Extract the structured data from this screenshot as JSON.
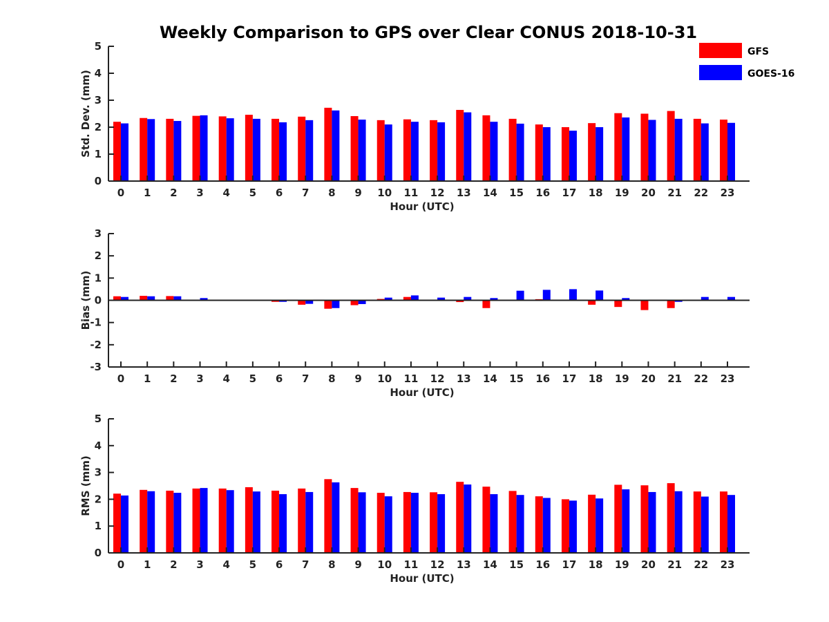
{
  "title": "Weekly Comparison to GPS over Clear CONUS 2018-10-31",
  "colors": {
    "GFS": "#ff0000",
    "GOES-16": "#0000ff"
  },
  "legend": {
    "position": "top-right",
    "entries": [
      "GFS",
      "GOES-16"
    ]
  },
  "chart_data": [
    {
      "type": "bar",
      "xlabel": "Hour (UTC)",
      "ylabel": "Std. Dev. (mm)",
      "ylim": [
        0,
        5
      ],
      "yticks": [
        0,
        1,
        2,
        3,
        4,
        5
      ],
      "categories": [
        "0",
        "1",
        "2",
        "3",
        "4",
        "5",
        "6",
        "7",
        "8",
        "9",
        "10",
        "11",
        "12",
        "13",
        "14",
        "15",
        "16",
        "17",
        "18",
        "19",
        "20",
        "21",
        "22",
        "23"
      ],
      "series": [
        {
          "name": "GFS",
          "values": [
            2.2,
            2.34,
            2.31,
            2.42,
            2.4,
            2.46,
            2.31,
            2.39,
            2.72,
            2.41,
            2.26,
            2.29,
            2.26,
            2.64,
            2.44,
            2.31,
            2.1,
            2.0,
            2.15,
            2.52,
            2.5,
            2.6,
            2.31,
            2.28
          ]
        },
        {
          "name": "GOES-16",
          "values": [
            2.14,
            2.3,
            2.23,
            2.44,
            2.33,
            2.31,
            2.18,
            2.26,
            2.62,
            2.28,
            2.1,
            2.2,
            2.18,
            2.55,
            2.2,
            2.13,
            2.0,
            1.87,
            2.0,
            2.36,
            2.27,
            2.31,
            2.14,
            2.16
          ]
        }
      ]
    },
    {
      "type": "bar",
      "xlabel": "Hour (UTC)",
      "ylabel": "Bias (mm)",
      "ylim": [
        -3,
        3
      ],
      "yticks": [
        -3,
        -2,
        -1,
        0,
        1,
        2,
        3
      ],
      "categories": [
        "0",
        "1",
        "2",
        "3",
        "4",
        "5",
        "6",
        "7",
        "8",
        "9",
        "10",
        "11",
        "12",
        "13",
        "14",
        "15",
        "16",
        "17",
        "18",
        "19",
        "20",
        "21",
        "22",
        "23"
      ],
      "series": [
        {
          "name": "GFS",
          "values": [
            0.18,
            0.2,
            0.19,
            0.01,
            0.01,
            0.02,
            -0.07,
            -0.2,
            -0.38,
            -0.22,
            0.06,
            0.15,
            0.01,
            -0.08,
            -0.35,
            0.0,
            0.05,
            0.0,
            -0.2,
            -0.3,
            -0.44,
            -0.35,
            0.03,
            0.02
          ]
        },
        {
          "name": "GOES-16",
          "values": [
            0.15,
            0.18,
            0.18,
            0.1,
            0.03,
            0.02,
            -0.07,
            -0.16,
            -0.35,
            -0.17,
            0.12,
            0.22,
            0.12,
            0.15,
            0.1,
            0.43,
            0.47,
            0.5,
            0.44,
            0.1,
            -0.02,
            -0.07,
            0.15,
            0.15
          ]
        }
      ]
    },
    {
      "type": "bar",
      "xlabel": "Hour (UTC)",
      "ylabel": "RMS (mm)",
      "ylim": [
        0,
        5
      ],
      "yticks": [
        0,
        1,
        2,
        3,
        4,
        5
      ],
      "categories": [
        "0",
        "1",
        "2",
        "3",
        "4",
        "5",
        "6",
        "7",
        "8",
        "9",
        "10",
        "11",
        "12",
        "13",
        "14",
        "15",
        "16",
        "17",
        "18",
        "19",
        "20",
        "21",
        "22",
        "23"
      ],
      "series": [
        {
          "name": "GFS",
          "values": [
            2.21,
            2.35,
            2.32,
            2.4,
            2.4,
            2.45,
            2.32,
            2.4,
            2.75,
            2.42,
            2.24,
            2.27,
            2.26,
            2.65,
            2.47,
            2.31,
            2.11,
            2.0,
            2.17,
            2.54,
            2.52,
            2.6,
            2.29,
            2.29
          ]
        },
        {
          "name": "GOES-16",
          "values": [
            2.14,
            2.3,
            2.24,
            2.42,
            2.34,
            2.29,
            2.19,
            2.27,
            2.63,
            2.26,
            2.11,
            2.24,
            2.19,
            2.55,
            2.19,
            2.16,
            2.05,
            1.95,
            2.03,
            2.37,
            2.27,
            2.3,
            2.1,
            2.16
          ]
        }
      ]
    }
  ]
}
